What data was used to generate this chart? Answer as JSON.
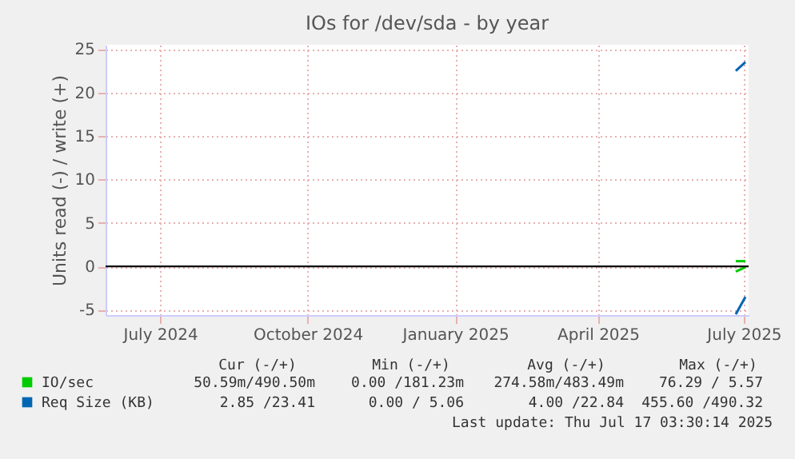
{
  "chart_data": {
    "type": "line",
    "title": "IOs for /dev/sda - by year",
    "ylabel": "Units read (-) / write (+)",
    "xlim": [
      "2024-06-13",
      "2025-07-19"
    ],
    "xticks": [
      {
        "value": "2024-07-17",
        "label": "July 2024"
      },
      {
        "value": "2024-10-17",
        "label": "October 2024"
      },
      {
        "value": "2025-01-17",
        "label": "January 2025"
      },
      {
        "value": "2025-04-16",
        "label": "April 2025"
      },
      {
        "value": "2025-07-16",
        "label": "July 2025"
      }
    ],
    "ylim": [
      -5.6,
      25.5
    ],
    "yticks": [
      -5,
      0,
      5,
      10,
      15,
      20,
      25
    ],
    "grid": true,
    "legend": "bottom",
    "ref_lines": [
      {
        "axis": "y",
        "value": 0,
        "color": "#000000"
      }
    ],
    "series": [
      {
        "name": "IO/sec",
        "color": "#00cc00",
        "line_style": "solid",
        "x": [
          "2025-07-11",
          "2025-07-17"
        ],
        "values": [
          0.6,
          0.6
        ]
      },
      {
        "name": "Req Size (KB)",
        "color": "#0066b3",
        "line_style": "solid",
        "x": [
          "2025-07-11",
          "2025-07-17"
        ],
        "values": [
          22.5,
          23.5
        ]
      },
      {
        "color": "#00cc00",
        "line_style": "solid",
        "x": [
          "2025-07-11",
          "2025-07-17"
        ],
        "values": [
          -0.6,
          -0.1
        ]
      },
      {
        "color": "#0066b3",
        "line_style": "solid",
        "x": [
          "2025-07-11",
          "2025-07-17"
        ],
        "values": [
          -5.5,
          -3.5
        ]
      }
    ],
    "annotations": [
      "Cur (-/+)",
      "Min (-/+)",
      "Avg (-/+)",
      "Max (-/+)",
      "50.59m/490.50m",
      "0.00 /181.23m",
      "274.58m/483.49m",
      "76.29 / 5.57",
      "2.85 /23.41",
      "0.00 / 5.06",
      "4.00 /22.84",
      "455.60 /490.32",
      "Last update: Thu Jul 17 03:30:14 2025"
    ]
  }
}
